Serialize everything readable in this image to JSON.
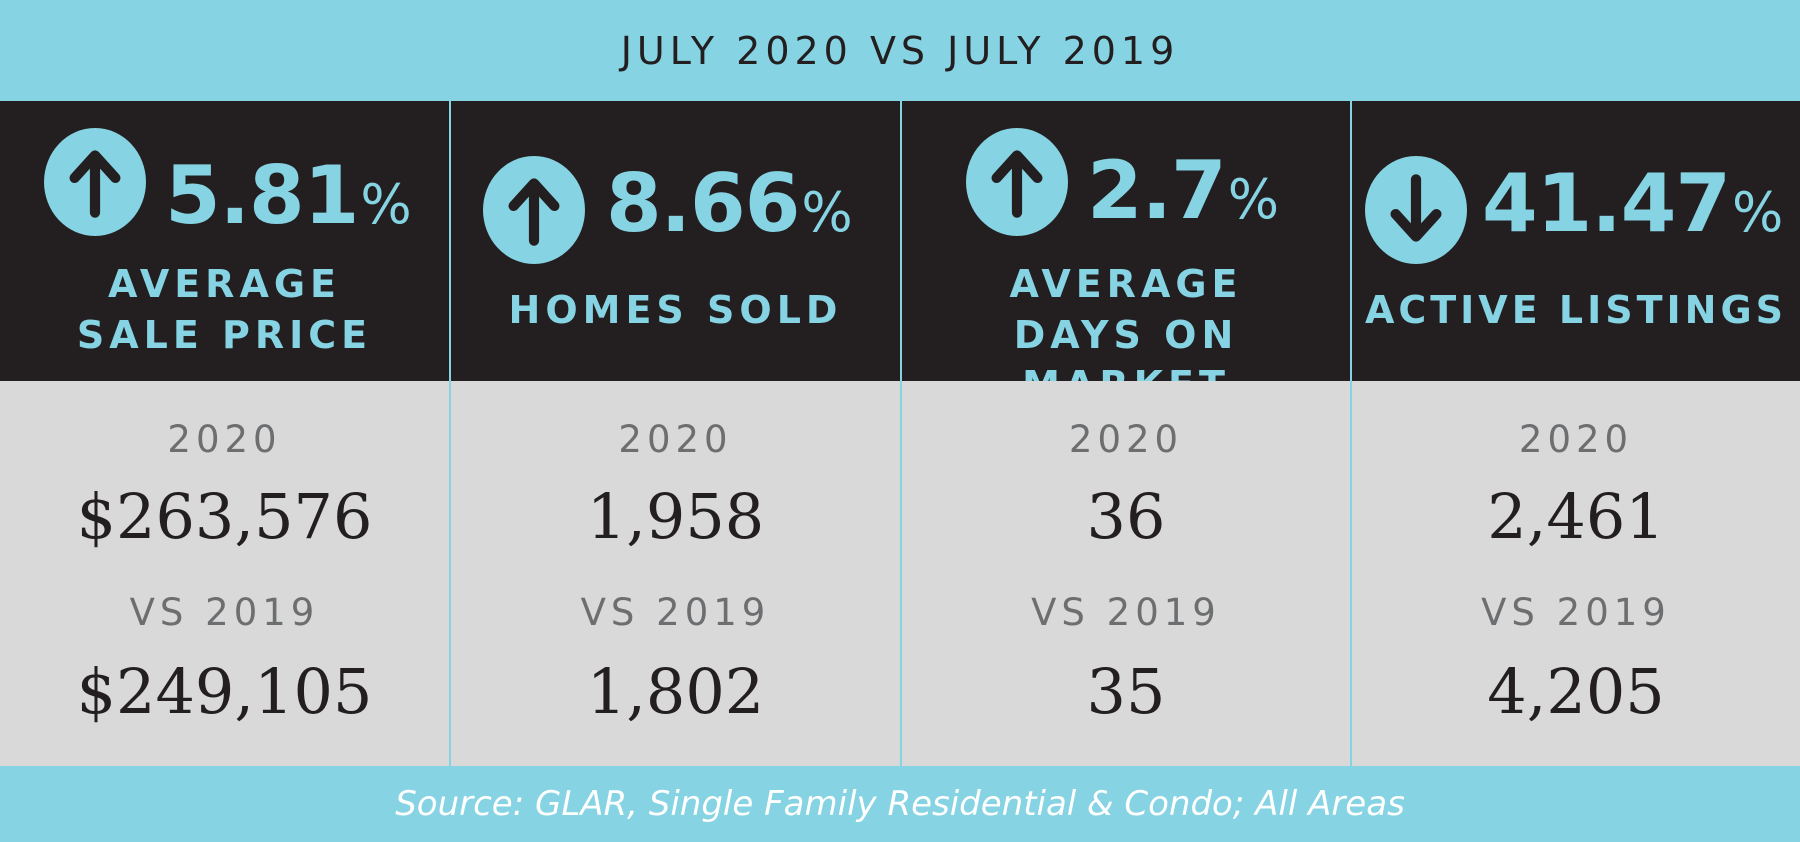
{
  "header": {
    "title": "JULY 2020 VS JULY 2019"
  },
  "colors": {
    "accent": "#86d3e3",
    "dark": "#231f20",
    "panel": "#d9d9d9",
    "muted": "#6d6e70"
  },
  "stats": [
    {
      "direction": "up",
      "icon": "arrow-up-icon",
      "percent": "5.81",
      "percent_symbol": "%",
      "label_line1": "AVERAGE",
      "label_line2": "SALE PRICE",
      "year_label": "2020",
      "value_2020": "$263,576",
      "vs_label": "VS 2019",
      "value_2019": "$249,105"
    },
    {
      "direction": "up",
      "icon": "arrow-up-icon",
      "percent": "8.66",
      "percent_symbol": "%",
      "label_line1": "HOMES SOLD",
      "label_line2": "",
      "year_label": "2020",
      "value_2020": "1,958",
      "vs_label": "VS 2019",
      "value_2019": "1,802"
    },
    {
      "direction": "up",
      "icon": "arrow-up-icon",
      "percent": "2.7",
      "percent_symbol": "%",
      "label_line1": "AVERAGE",
      "label_line2": "DAYS ON MARKET",
      "year_label": "2020",
      "value_2020": "36",
      "vs_label": "VS 2019",
      "value_2019": "35"
    },
    {
      "direction": "down",
      "icon": "arrow-down-icon",
      "percent": "41.47",
      "percent_symbol": "%",
      "label_line1": "ACTIVE LISTINGS",
      "label_line2": "",
      "year_label": "2020",
      "value_2020": "2,461",
      "vs_label": "VS 2019",
      "value_2019": "4,205"
    }
  ],
  "footer": {
    "source": "Source: GLAR, Single Family Residential & Condo; All Areas"
  }
}
